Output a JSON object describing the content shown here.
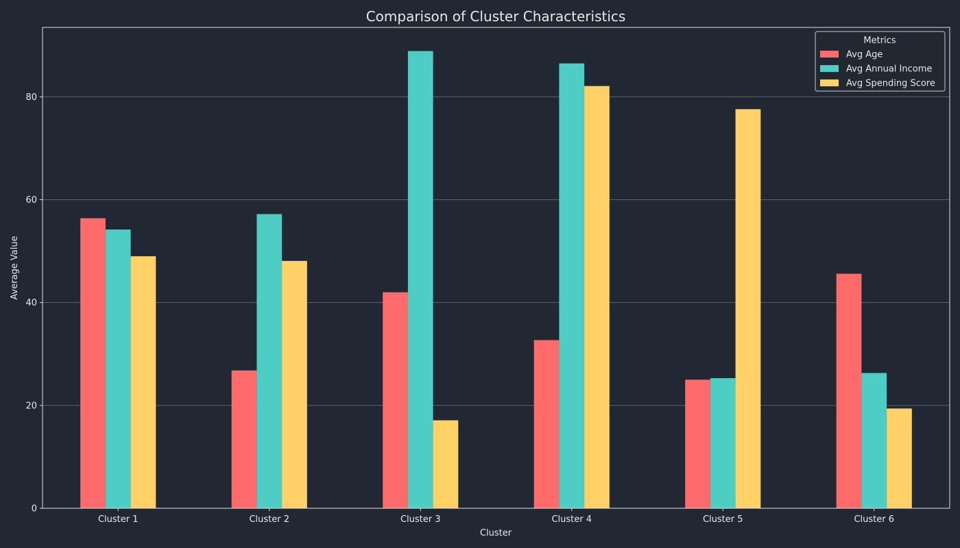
{
  "chart_data": {
    "type": "bar",
    "title": "Comparison of Cluster Characteristics",
    "xlabel": "Cluster",
    "ylabel": "Average Value",
    "categories": [
      "Cluster 1",
      "Cluster 2",
      "Cluster 3",
      "Cluster 4",
      "Cluster 5",
      "Cluster 6"
    ],
    "series": [
      {
        "name": "Avg Age",
        "color": "#FF6B6B",
        "values": [
          56.4,
          26.8,
          42.0,
          32.7,
          25.0,
          45.6
        ]
      },
      {
        "name": "Avg Annual Income",
        "color": "#4ECDC4",
        "values": [
          54.2,
          57.2,
          88.9,
          86.5,
          25.3,
          26.3
        ]
      },
      {
        "name": "Avg Spending Score",
        "color": "#FFD166",
        "values": [
          49.0,
          48.1,
          17.1,
          82.1,
          77.6,
          19.4
        ]
      }
    ],
    "ylim": [
      0,
      93.5
    ],
    "yticks": [
      0,
      20,
      40,
      60,
      80
    ],
    "grid": "horizontal",
    "legend": {
      "title": "Metrics",
      "placement": "top-right"
    },
    "colors": {
      "background": "#222833",
      "text": "#E8E8E8",
      "axis": "#E0E0E0",
      "grid": "#5C6370"
    }
  }
}
